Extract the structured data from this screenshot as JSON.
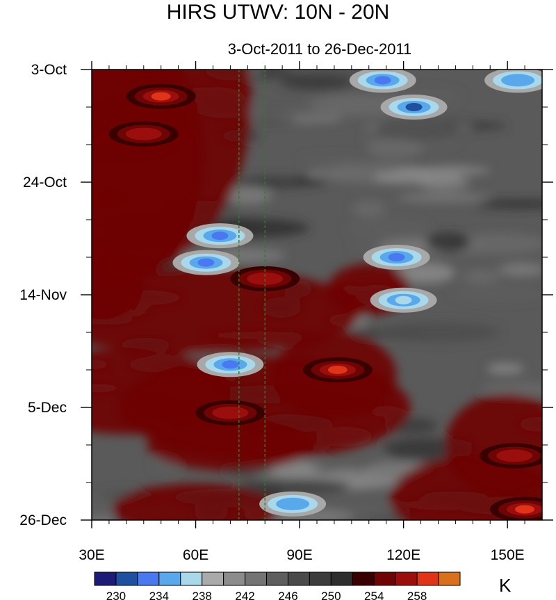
{
  "chart_data": {
    "type": "heatmap",
    "title": "HIRS UTWV: 10N - 20N",
    "subtitle": "3-Oct-2011 to 26-Dec-2011",
    "x_range": [
      30,
      160
    ],
    "x_ticks": [
      {
        "value": 30,
        "label": "30E"
      },
      {
        "value": 60,
        "label": "60E"
      },
      {
        "value": 90,
        "label": "90E"
      },
      {
        "value": 120,
        "label": "120E"
      },
      {
        "value": 150,
        "label": "150E"
      }
    ],
    "y_range_days": [
      0,
      84
    ],
    "y_ticks": [
      {
        "value": 0,
        "label": "3-Oct"
      },
      {
        "value": 21,
        "label": "24-Oct"
      },
      {
        "value": 42,
        "label": "14-Nov"
      },
      {
        "value": 63,
        "label": "5-Dec"
      },
      {
        "value": 84,
        "label": "26-Dec"
      }
    ],
    "reference_lines_lon": [
      72.5,
      80
    ],
    "colorbar": {
      "levels": [
        228,
        230,
        232,
        234,
        236,
        238,
        240,
        242,
        244,
        246,
        248,
        250,
        252,
        254,
        256,
        258,
        260
      ],
      "labeled": [
        230,
        234,
        238,
        242,
        246,
        250,
        254,
        258
      ],
      "colors": [
        "#1c1c78",
        "#1e50a0",
        "#4a78f0",
        "#5aa8ec",
        "#a8d8ea",
        "#aaaaaa",
        "#8c8c8c",
        "#747474",
        "#5e5e5e",
        "#4a4a4a",
        "#3c3c3c",
        "#2e2e2e",
        "#3a0000",
        "#6e0404",
        "#9a0e0e",
        "#e03418",
        "#d8701c"
      ],
      "units": "K"
    },
    "features": [
      {
        "lon": 50,
        "day": 5,
        "value": 258.5
      },
      {
        "lon": 45,
        "day": 12,
        "value": 256
      },
      {
        "lon": 123,
        "day": 7,
        "value": 230.5
      },
      {
        "lon": 114,
        "day": 2,
        "value": 233
      },
      {
        "lon": 153,
        "day": 2,
        "value": 234
      },
      {
        "lon": 67,
        "day": 31,
        "value": 233
      },
      {
        "lon": 63,
        "day": 36,
        "value": 232
      },
      {
        "lon": 118,
        "day": 35,
        "value": 233
      },
      {
        "lon": 120,
        "day": 43,
        "value": 236
      },
      {
        "lon": 101,
        "day": 56,
        "value": 259
      },
      {
        "lon": 70,
        "day": 55,
        "value": 232
      },
      {
        "lon": 88,
        "day": 81,
        "value": 234
      },
      {
        "lon": 155,
        "day": 82,
        "value": 259
      },
      {
        "lon": 152,
        "day": 72,
        "value": 256
      },
      {
        "lon": 70,
        "day": 64,
        "value": 256
      },
      {
        "lon": 80,
        "day": 39,
        "value": 256
      }
    ]
  }
}
